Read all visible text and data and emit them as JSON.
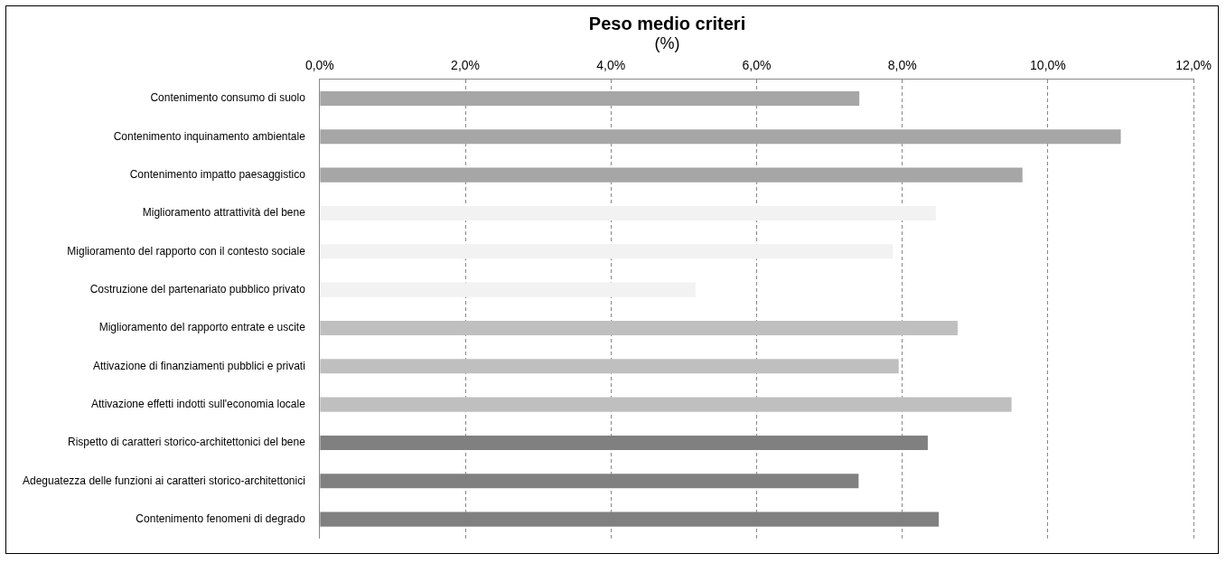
{
  "chart_data": {
    "type": "bar",
    "orientation": "horizontal",
    "title": "Peso medio criteri",
    "subtitle": "(%)",
    "categories": [
      "Contenimento consumo di suolo",
      "Contenimento inquinamento ambientale",
      "Contenimento impatto paesaggistico",
      "Miglioramento attrattività del bene",
      "Miglioramento del rapporto con il contesto sociale",
      "Costruzione del partenariato pubblico privato",
      "Miglioramento del rapporto entrate e uscite",
      "Attivazione di finanziamenti pubblici e privati",
      "Attivazione effetti indotti sull'economia locale",
      "Rispetto di caratteri storico-architettonici del bene",
      "Adeguatezza delle funzioni ai caratteri storico-architettonici",
      "Contenimento fenomeni di degrado"
    ],
    "values": [
      7.41,
      11.0,
      9.65,
      8.46,
      7.87,
      5.16,
      8.76,
      7.95,
      9.5,
      8.35,
      7.4,
      8.5
    ],
    "colors": [
      "#a6a6a6",
      "#a6a6a6",
      "#a6a6a6",
      "#f2f2f2",
      "#f2f2f2",
      "#f2f2f2",
      "#bfbfbf",
      "#bfbfbf",
      "#bfbfbf",
      "#808080",
      "#808080",
      "#808080"
    ],
    "xlim": [
      0,
      12
    ],
    "xticks": [
      {
        "value": 0,
        "label": "0,0%"
      },
      {
        "value": 2,
        "label": "2,0%"
      },
      {
        "value": 4,
        "label": "4,0%"
      },
      {
        "value": 6,
        "label": "6,0%"
      },
      {
        "value": 8,
        "label": "8,0%"
      },
      {
        "value": 10,
        "label": "10,0%"
      },
      {
        "value": 12,
        "label": "12,0%"
      }
    ],
    "grid": "x",
    "legend": false
  }
}
